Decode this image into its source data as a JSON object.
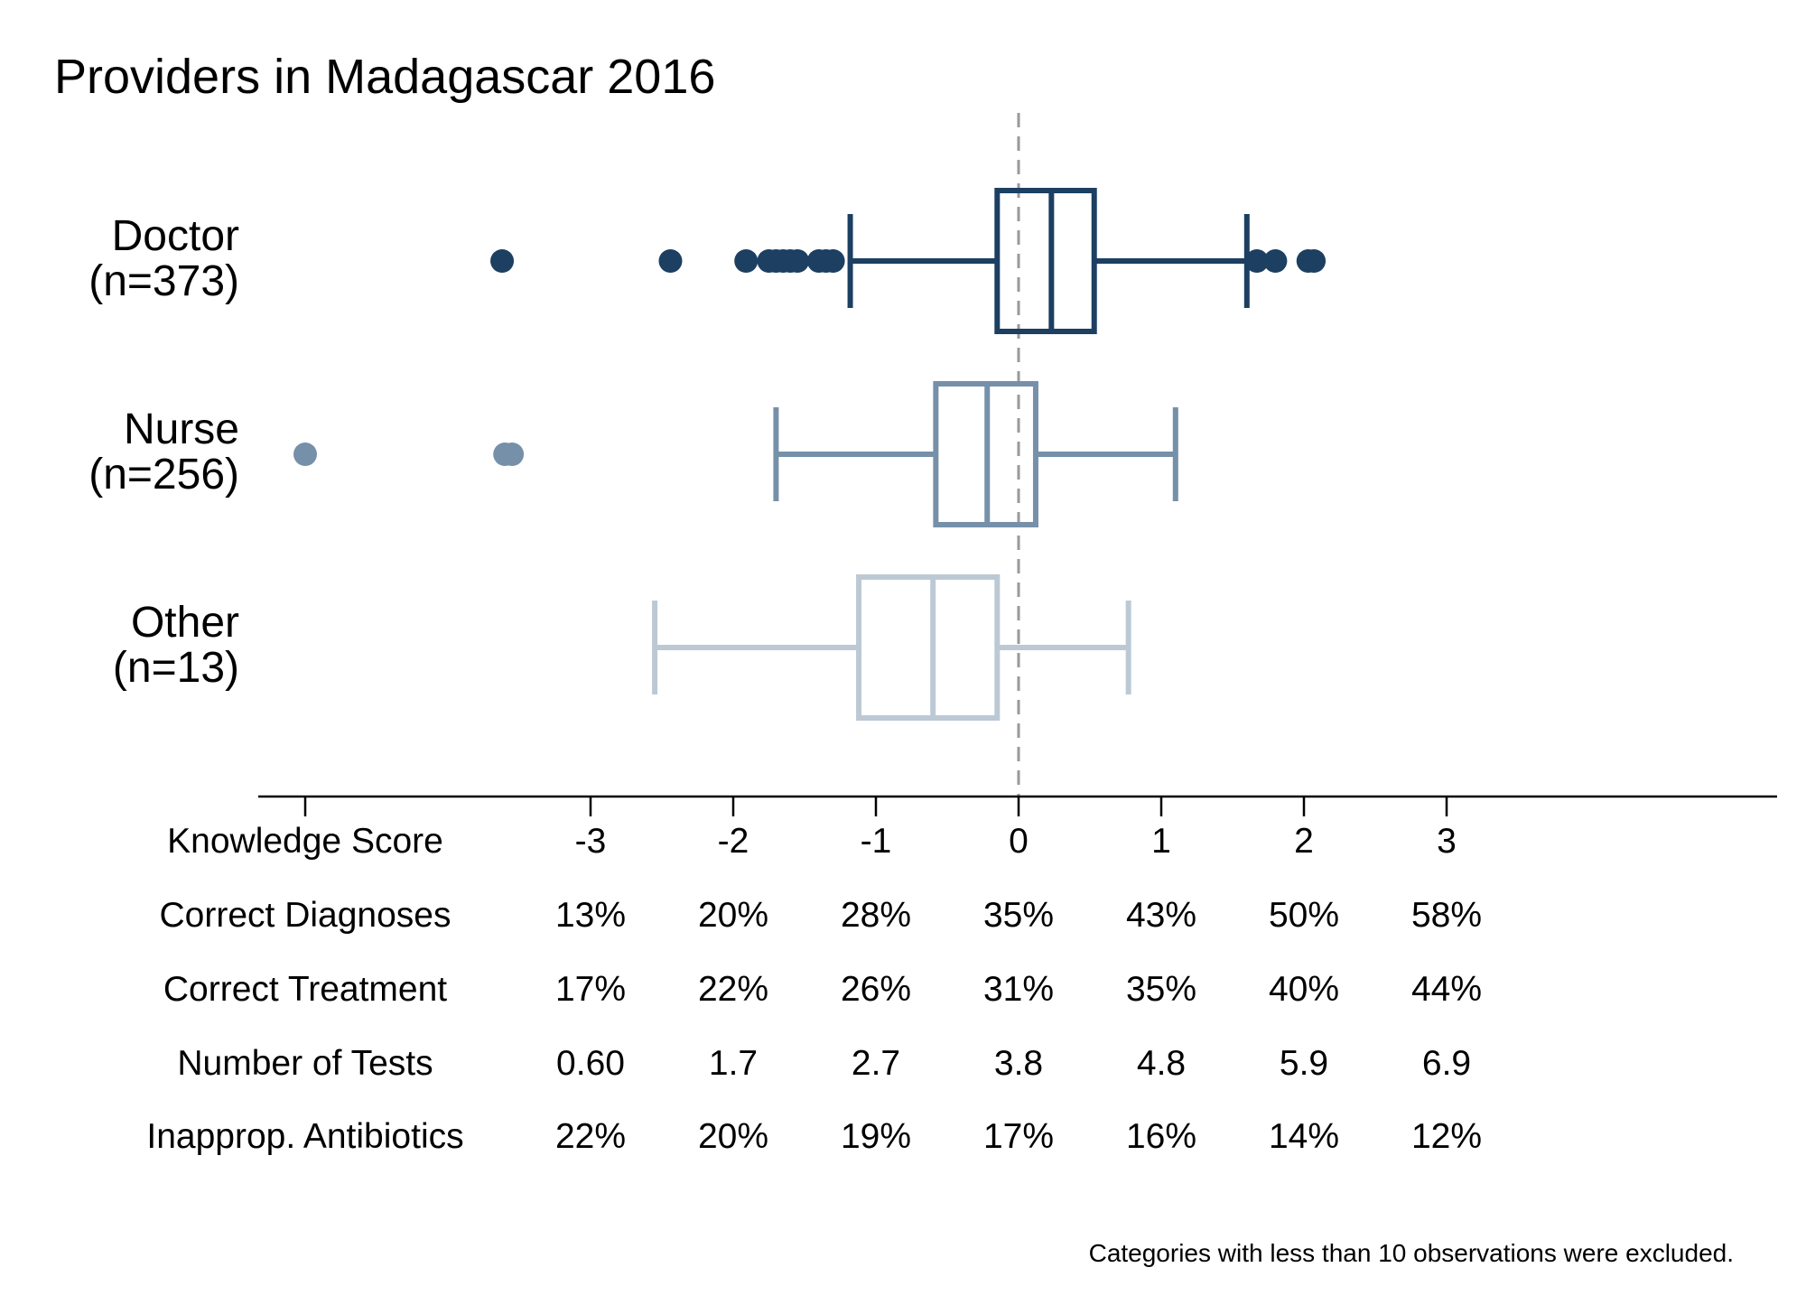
{
  "colors": {
    "Doctor": "#1c3f62",
    "Nurse": "#7690a9",
    "Other": "#bcc9d5",
    "reference_line": "#999999",
    "axis": "#000000"
  },
  "chart_data": {
    "type": "box",
    "title": "Providers in Madagascar 2016",
    "xlim": [
      -5,
      5.35
    ],
    "x_ticks": [
      -5,
      -3,
      -2,
      -1,
      0,
      1,
      2,
      3
    ],
    "reference_line": 0,
    "orientation": "horizontal",
    "groups": [
      {
        "label": "Doctor",
        "n_label": "(n=373)",
        "whisker_low": -1.18,
        "q1": -0.15,
        "median": 0.23,
        "q3": 0.53,
        "whisker_high": 1.6,
        "outliers": [
          -3.62,
          -2.44,
          -1.91,
          -1.75,
          -1.7,
          -1.65,
          -1.6,
          -1.55,
          -1.4,
          -1.35,
          -1.3,
          1.67,
          1.8,
          2.03,
          2.07
        ]
      },
      {
        "label": "Nurse",
        "n_label": "(n=256)",
        "whisker_low": -1.7,
        "q1": -0.58,
        "median": -0.22,
        "q3": 0.12,
        "whisker_high": 1.1,
        "outliers": [
          -5.0,
          -3.6,
          -3.55
        ]
      },
      {
        "label": "Other",
        "n_label": "(n=13)",
        "whisker_low": -2.55,
        "q1": -1.12,
        "median": -0.6,
        "q3": -0.15,
        "whisker_high": 0.77,
        "outliers": []
      }
    ],
    "table": {
      "rows": [
        {
          "label": "Knowledge Score",
          "values": [
            "-3",
            "-2",
            "-1",
            "0",
            "1",
            "2",
            "3"
          ]
        },
        {
          "label": "Correct Diagnoses",
          "values": [
            "13%",
            "20%",
            "28%",
            "35%",
            "43%",
            "50%",
            "58%"
          ]
        },
        {
          "label": "Correct Treatment",
          "values": [
            "17%",
            "22%",
            "26%",
            "31%",
            "35%",
            "40%",
            "44%"
          ]
        },
        {
          "label": "Number of Tests",
          "values": [
            "0.60",
            "1.7",
            "2.7",
            "3.8",
            "4.8",
            "5.9",
            "6.9"
          ]
        },
        {
          "label": "Inapprop. Antibiotics",
          "values": [
            "22%",
            "20%",
            "19%",
            "17%",
            "16%",
            "14%",
            "12%"
          ]
        }
      ]
    },
    "note": "Categories with less than 10 observations were excluded."
  }
}
